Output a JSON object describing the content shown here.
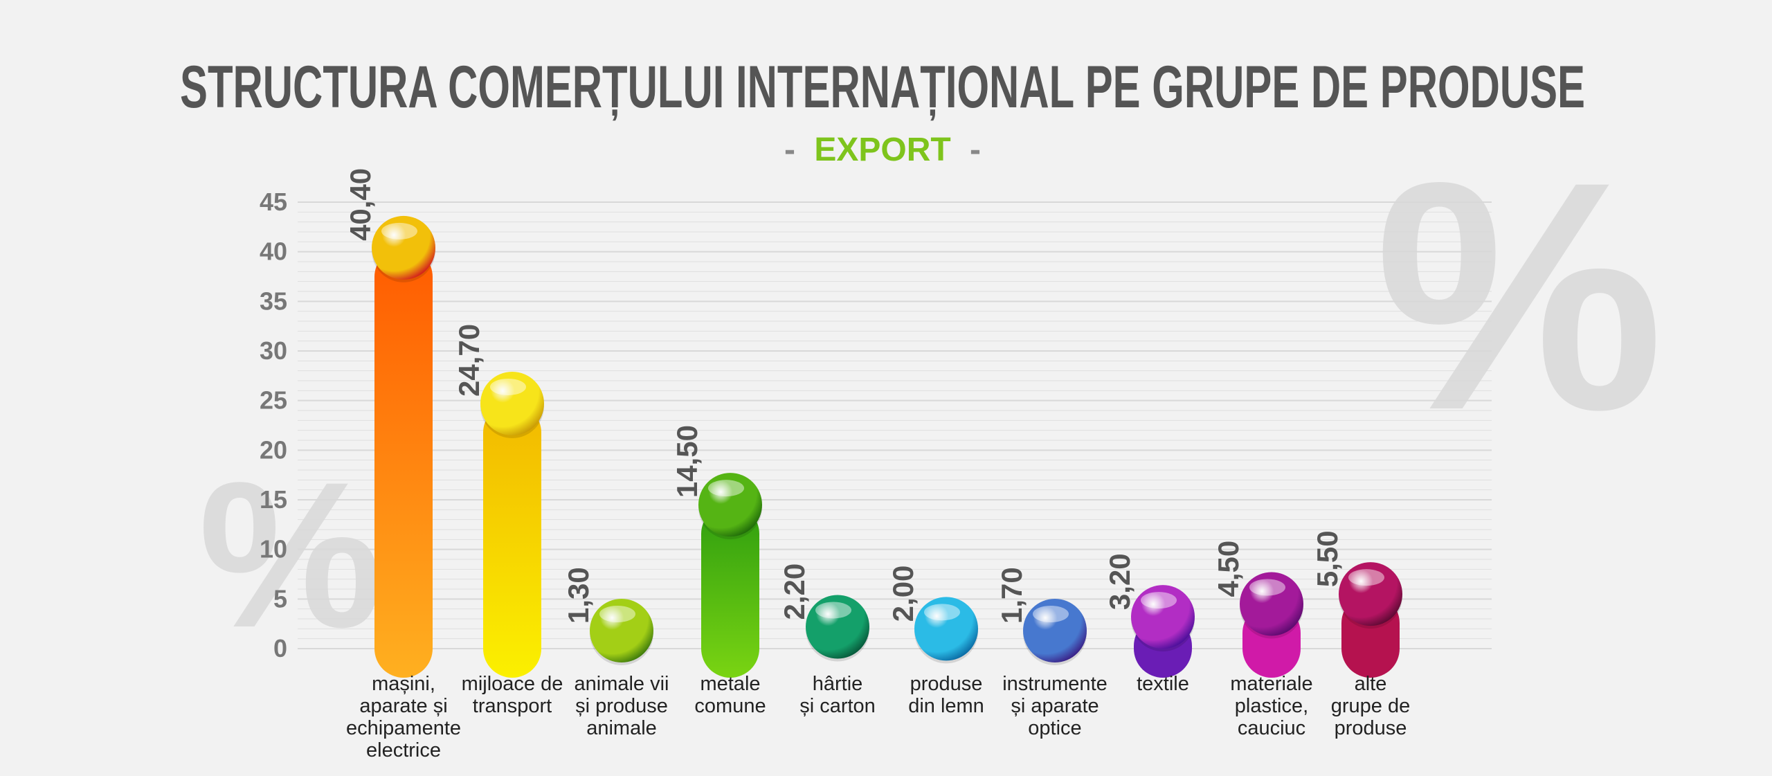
{
  "header": {
    "title": "STRUCTURA COMERȚULUI INTERNAȚIONAL PE GRUPE DE PRODUSE",
    "subtitle_dash_left": "-",
    "subtitle": "EXPORT",
    "subtitle_dash_right": "-"
  },
  "decor": {
    "percent_symbol": "%"
  },
  "colors": {
    "background": "#f2f2f2",
    "title": "#555555",
    "subtitle": "#7ec41c",
    "tick_text": "#777777",
    "grid": "#d8d8d8",
    "percent_decor": "#d9d9d9"
  },
  "chart_data": {
    "type": "bar",
    "title": "STRUCTURA COMERȚULUI INTERNAȚIONAL PE GRUPE DE PRODUSE",
    "subtitle": "EXPORT",
    "xlabel": "",
    "ylabel": "",
    "ylim": [
      0,
      45
    ],
    "yticks": [
      0,
      5,
      10,
      15,
      20,
      25,
      30,
      35,
      40,
      45
    ],
    "grid": true,
    "categories": [
      [
        "mașini,",
        "aparate și",
        "echipamente",
        "electrice"
      ],
      [
        "mijloace de",
        "transport"
      ],
      [
        "animale vii",
        "și produse",
        "animale"
      ],
      [
        "metale",
        "comune"
      ],
      [
        "hârtie",
        "și carton"
      ],
      [
        "produse",
        "din lemn"
      ],
      [
        "instrumente",
        "și aparate",
        "optice"
      ],
      [
        "textile"
      ],
      [
        "materiale",
        "plastice,",
        "cauciuc"
      ],
      [
        "alte",
        "grupe de",
        "produse"
      ]
    ],
    "values": [
      40.4,
      24.7,
      1.3,
      14.5,
      2.2,
      2.0,
      1.7,
      3.2,
      4.5,
      5.5
    ],
    "value_labels": [
      "40,40",
      "24,70",
      "1,30",
      "14,50",
      "2,20",
      "2,00",
      "1,70",
      "3,20",
      "4,50",
      "5,50"
    ],
    "bar_colors": [
      {
        "top": "#ff5a00",
        "bottom": "#ffb020",
        "ball": "#f2c00a",
        "ball_dark": "#d21d1d"
      },
      {
        "top": "#f2b800",
        "bottom": "#fbf000",
        "ball": "#f7e41a",
        "ball_dark": "#c99a05"
      },
      {
        "top": "#8cc21a",
        "bottom": "#8cc21a",
        "ball": "#a3cf16",
        "ball_dark": "#3d7a0c"
      },
      {
        "top": "#2d9d10",
        "bottom": "#7ad412",
        "ball": "#55b414",
        "ball_dark": "#1f6a09"
      },
      {
        "top": "#0f8f5e",
        "bottom": "#0f8f5e",
        "ball": "#14a06a",
        "ball_dark": "#07583a"
      },
      {
        "top": "#1aa5d8",
        "bottom": "#1aa5d8",
        "ball": "#2bbbe6",
        "ball_dark": "#0a6aa3"
      },
      {
        "top": "#3a4fb0",
        "bottom": "#3a4fb0",
        "ball": "#4778cf",
        "ball_dark": "#3a1f86"
      },
      {
        "top": "#6a1db5",
        "bottom": "#6a1db5",
        "ball": "#b22dc4",
        "ball_dark": "#4a0f9a"
      },
      {
        "top": "#d01aa8",
        "bottom": "#d01aa8",
        "ball": "#a31a9a",
        "ball_dark": "#5a0a6e"
      },
      {
        "top": "#b5124f",
        "bottom": "#b5124f",
        "ball": "#b41462",
        "ball_dark": "#5c0a33"
      }
    ]
  }
}
